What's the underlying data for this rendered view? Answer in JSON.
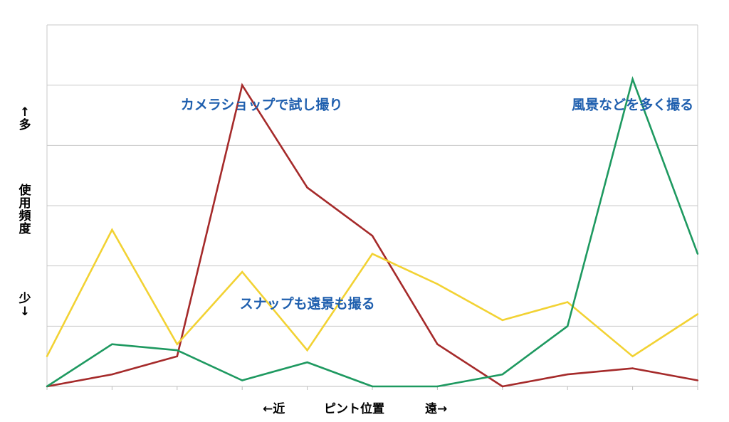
{
  "chart_data": {
    "type": "line",
    "xlabel": {
      "near": "←近",
      "center": "ピント位置",
      "far": "遠→"
    },
    "ylabel": {
      "top": "↑多",
      "middle": "使用頻度",
      "bottom": "少↓"
    },
    "ylim": [
      0,
      6
    ],
    "grid": true,
    "x": [
      0,
      1,
      2,
      3,
      4,
      5,
      6,
      7,
      8,
      9,
      10
    ],
    "series": [
      {
        "color": "#a52a2a",
        "values": [
          0,
          0.2,
          0.5,
          5.0,
          3.3,
          2.5,
          0.7,
          0.0,
          0.2,
          0.3,
          0.1
        ]
      },
      {
        "color": "#f2d233",
        "values": [
          0.5,
          2.6,
          0.7,
          1.9,
          0.6,
          2.2,
          1.7,
          1.1,
          1.4,
          0.5,
          1.2
        ]
      },
      {
        "color": "#1e9960",
        "values": [
          0,
          0.7,
          0.6,
          0.1,
          0.4,
          0.0,
          0.0,
          0.2,
          1.0,
          5.1,
          2.2
        ]
      }
    ],
    "annotations": [
      {
        "text": "カメラショップで試し撮り",
        "x": 3.3,
        "y": 4.6
      },
      {
        "text": "風景などを多く撮る",
        "x": 9.0,
        "y": 4.6
      },
      {
        "text": "スナップも遠景も撮る",
        "x": 4.0,
        "y": 1.3
      }
    ],
    "annotation_color": "#1f5fae"
  }
}
